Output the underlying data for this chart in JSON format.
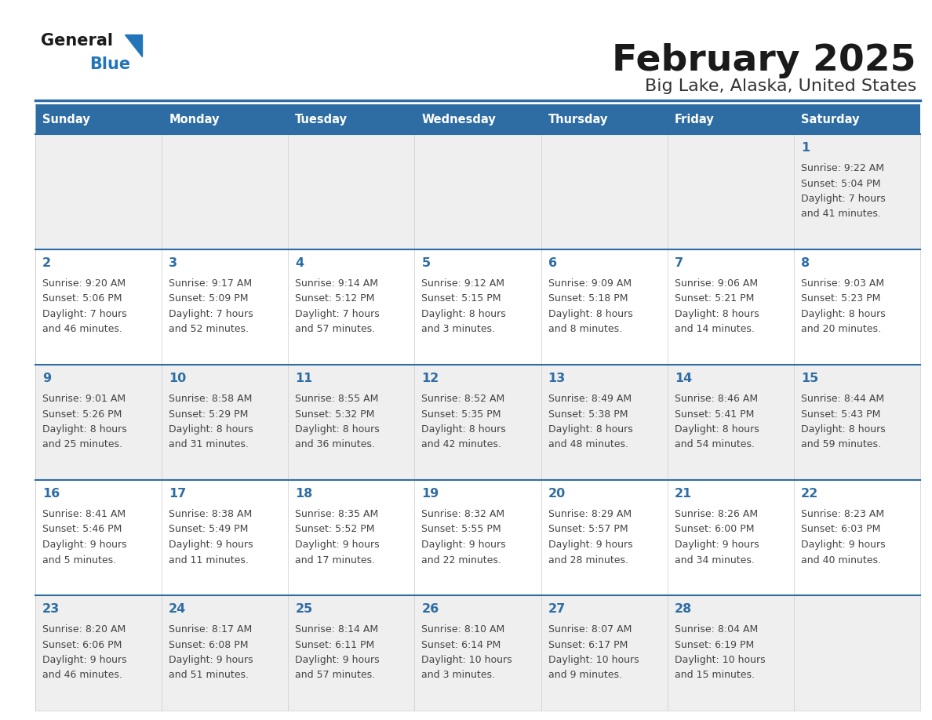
{
  "title": "February 2025",
  "subtitle": "Big Lake, Alaska, United States",
  "header_color": "#2E6DA4",
  "header_text_color": "#FFFFFF",
  "cell_bg_even": "#EFEFEF",
  "cell_bg_odd": "#FFFFFF",
  "row_border_color": "#2E6DA4",
  "col_border_color": "#CCCCCC",
  "day_number_color": "#2E6DA4",
  "text_color": "#444444",
  "days_of_week": [
    "Sunday",
    "Monday",
    "Tuesday",
    "Wednesday",
    "Thursday",
    "Friday",
    "Saturday"
  ],
  "calendar_data": [
    [
      null,
      null,
      null,
      null,
      null,
      null,
      {
        "day": "1",
        "sunrise": "9:22 AM",
        "sunset": "5:04 PM",
        "daylight": "7 hours",
        "daylight2": "and 41 minutes."
      }
    ],
    [
      {
        "day": "2",
        "sunrise": "9:20 AM",
        "sunset": "5:06 PM",
        "daylight": "7 hours",
        "daylight2": "and 46 minutes."
      },
      {
        "day": "3",
        "sunrise": "9:17 AM",
        "sunset": "5:09 PM",
        "daylight": "7 hours",
        "daylight2": "and 52 minutes."
      },
      {
        "day": "4",
        "sunrise": "9:14 AM",
        "sunset": "5:12 PM",
        "daylight": "7 hours",
        "daylight2": "and 57 minutes."
      },
      {
        "day": "5",
        "sunrise": "9:12 AM",
        "sunset": "5:15 PM",
        "daylight": "8 hours",
        "daylight2": "and 3 minutes."
      },
      {
        "day": "6",
        "sunrise": "9:09 AM",
        "sunset": "5:18 PM",
        "daylight": "8 hours",
        "daylight2": "and 8 minutes."
      },
      {
        "day": "7",
        "sunrise": "9:06 AM",
        "sunset": "5:21 PM",
        "daylight": "8 hours",
        "daylight2": "and 14 minutes."
      },
      {
        "day": "8",
        "sunrise": "9:03 AM",
        "sunset": "5:23 PM",
        "daylight": "8 hours",
        "daylight2": "and 20 minutes."
      }
    ],
    [
      {
        "day": "9",
        "sunrise": "9:01 AM",
        "sunset": "5:26 PM",
        "daylight": "8 hours",
        "daylight2": "and 25 minutes."
      },
      {
        "day": "10",
        "sunrise": "8:58 AM",
        "sunset": "5:29 PM",
        "daylight": "8 hours",
        "daylight2": "and 31 minutes."
      },
      {
        "day": "11",
        "sunrise": "8:55 AM",
        "sunset": "5:32 PM",
        "daylight": "8 hours",
        "daylight2": "and 36 minutes."
      },
      {
        "day": "12",
        "sunrise": "8:52 AM",
        "sunset": "5:35 PM",
        "daylight": "8 hours",
        "daylight2": "and 42 minutes."
      },
      {
        "day": "13",
        "sunrise": "8:49 AM",
        "sunset": "5:38 PM",
        "daylight": "8 hours",
        "daylight2": "and 48 minutes."
      },
      {
        "day": "14",
        "sunrise": "8:46 AM",
        "sunset": "5:41 PM",
        "daylight": "8 hours",
        "daylight2": "and 54 minutes."
      },
      {
        "day": "15",
        "sunrise": "8:44 AM",
        "sunset": "5:43 PM",
        "daylight": "8 hours",
        "daylight2": "and 59 minutes."
      }
    ],
    [
      {
        "day": "16",
        "sunrise": "8:41 AM",
        "sunset": "5:46 PM",
        "daylight": "9 hours",
        "daylight2": "and 5 minutes."
      },
      {
        "day": "17",
        "sunrise": "8:38 AM",
        "sunset": "5:49 PM",
        "daylight": "9 hours",
        "daylight2": "and 11 minutes."
      },
      {
        "day": "18",
        "sunrise": "8:35 AM",
        "sunset": "5:52 PM",
        "daylight": "9 hours",
        "daylight2": "and 17 minutes."
      },
      {
        "day": "19",
        "sunrise": "8:32 AM",
        "sunset": "5:55 PM",
        "daylight": "9 hours",
        "daylight2": "and 22 minutes."
      },
      {
        "day": "20",
        "sunrise": "8:29 AM",
        "sunset": "5:57 PM",
        "daylight": "9 hours",
        "daylight2": "and 28 minutes."
      },
      {
        "day": "21",
        "sunrise": "8:26 AM",
        "sunset": "6:00 PM",
        "daylight": "9 hours",
        "daylight2": "and 34 minutes."
      },
      {
        "day": "22",
        "sunrise": "8:23 AM",
        "sunset": "6:03 PM",
        "daylight": "9 hours",
        "daylight2": "and 40 minutes."
      }
    ],
    [
      {
        "day": "23",
        "sunrise": "8:20 AM",
        "sunset": "6:06 PM",
        "daylight": "9 hours",
        "daylight2": "and 46 minutes."
      },
      {
        "day": "24",
        "sunrise": "8:17 AM",
        "sunset": "6:08 PM",
        "daylight": "9 hours",
        "daylight2": "and 51 minutes."
      },
      {
        "day": "25",
        "sunrise": "8:14 AM",
        "sunset": "6:11 PM",
        "daylight": "9 hours",
        "daylight2": "and 57 minutes."
      },
      {
        "day": "26",
        "sunrise": "8:10 AM",
        "sunset": "6:14 PM",
        "daylight": "10 hours",
        "daylight2": "and 3 minutes."
      },
      {
        "day": "27",
        "sunrise": "8:07 AM",
        "sunset": "6:17 PM",
        "daylight": "10 hours",
        "daylight2": "and 9 minutes."
      },
      {
        "day": "28",
        "sunrise": "8:04 AM",
        "sunset": "6:19 PM",
        "daylight": "10 hours",
        "daylight2": "and 15 minutes."
      },
      null
    ]
  ],
  "logo_color_general": "#1a1a1a",
  "logo_color_blue": "#2175B8",
  "logo_triangle_color": "#2175B8"
}
